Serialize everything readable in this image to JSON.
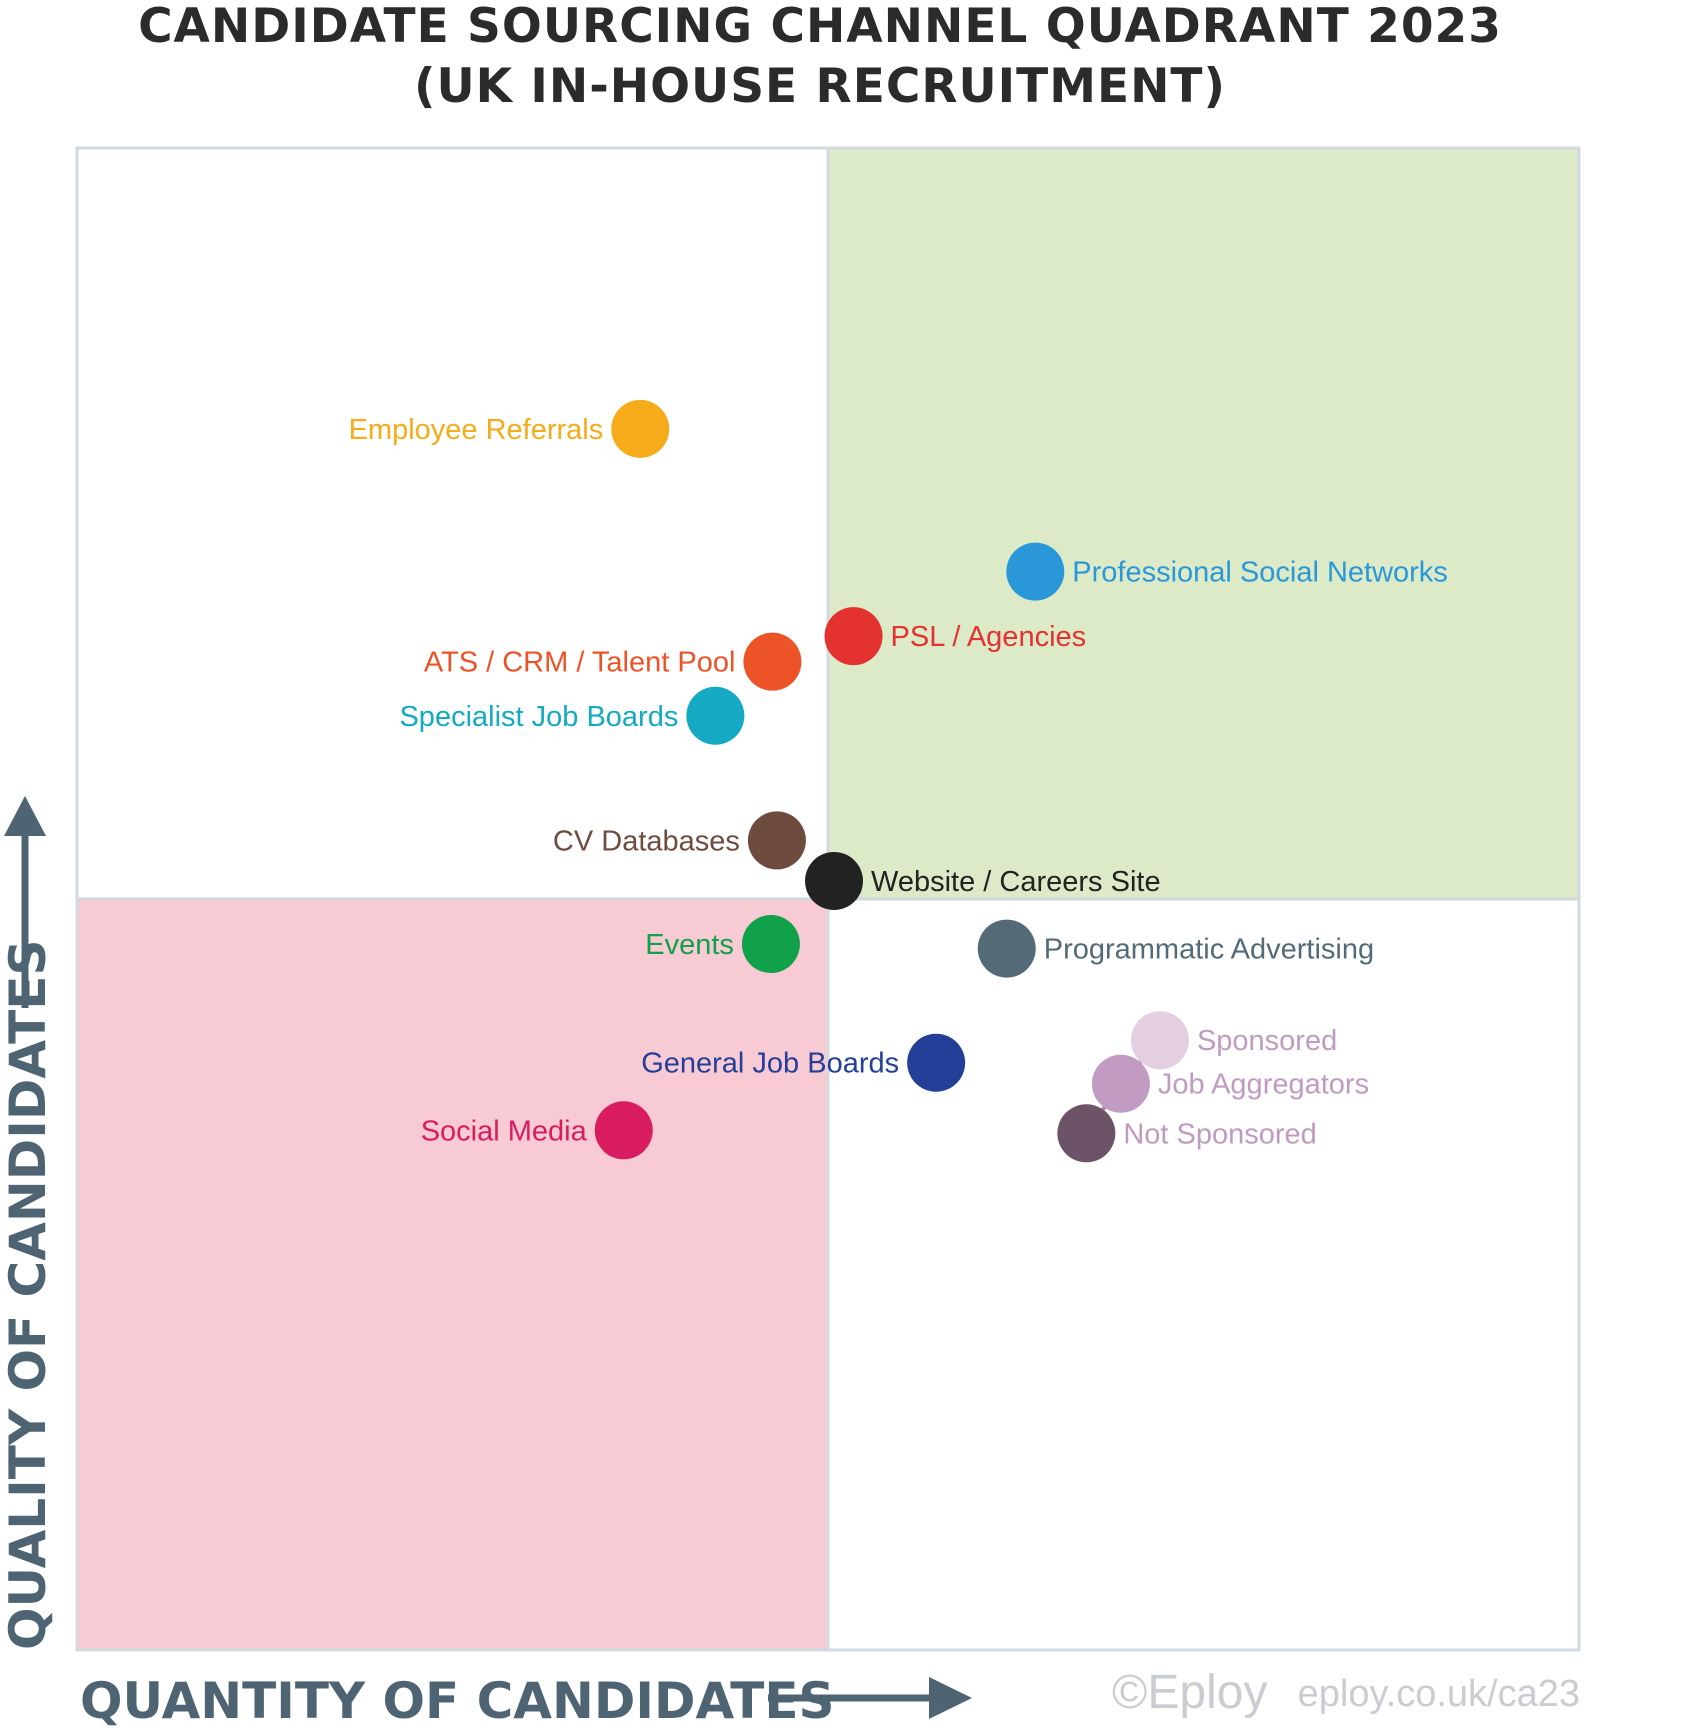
{
  "chart_data": {
    "type": "scatter",
    "title": "CANDIDATE SOURCING CHANNEL QUADRANT 2023",
    "subtitle": "(UK IN-HOUSE RECRUITMENT)",
    "xlabel": "QUANTITY OF CANDIDATES",
    "ylabel": "QUALITY OF CANDIDATES",
    "xlim": [
      0,
      100
    ],
    "ylim": [
      0,
      100
    ],
    "grid": false,
    "legend": "none",
    "quadrants": [
      {
        "name": "high-quantity-high-quality",
        "fill": "#dceac8"
      },
      {
        "name": "low-quantity-low-quality",
        "fill": "#f8cad3"
      },
      {
        "name": "low-quantity-high-quality",
        "fill": "#ffffff"
      },
      {
        "name": "high-quantity-low-quality",
        "fill": "#ffffff"
      }
    ],
    "points": [
      {
        "label": "Employee Referrals",
        "x": 37.5,
        "y": 81.3,
        "color": "#f6ab1a",
        "label_side": "left"
      },
      {
        "label": "Professional Social Networks",
        "x": 63.8,
        "y": 71.8,
        "color": "#2a98d8",
        "label_side": "right"
      },
      {
        "label": "PSL / Agencies",
        "x": 51.7,
        "y": 67.5,
        "color": "#e3322f",
        "label_side": "right"
      },
      {
        "label": "ATS / CRM / Talent Pool",
        "x": 46.3,
        "y": 65.8,
        "color": "#ec5427",
        "label_side": "left"
      },
      {
        "label": "Specialist Job Boards",
        "x": 42.5,
        "y": 62.2,
        "color": "#15a9c4",
        "label_side": "left"
      },
      {
        "label": "CV Databases",
        "x": 46.6,
        "y": 53.9,
        "color": "#6d4c3f",
        "label_side": "left"
      },
      {
        "label": "Website / Careers Site",
        "x": 50.4,
        "y": 51.2,
        "color": "#222222",
        "label_side": "right"
      },
      {
        "label": "Events",
        "x": 46.2,
        "y": 47.0,
        "color": "#10a14a",
        "label_side": "left"
      },
      {
        "label": "Programmatic Advertising",
        "x": 61.9,
        "y": 46.7,
        "color": "#556a77",
        "label_side": "right"
      },
      {
        "label": "General Job Boards",
        "x": 57.2,
        "y": 39.1,
        "color": "#233f97",
        "label_side": "left"
      },
      {
        "label": "Social Media",
        "x": 36.4,
        "y": 34.6,
        "color": "#d91b5f",
        "label_side": "left"
      },
      {
        "label": "Sponsored",
        "x": 72.1,
        "y": 40.6,
        "color": "#e3cfe0",
        "label_color": "#c09bc0",
        "label_side": "right"
      },
      {
        "label": "Job Aggregators",
        "x": 69.5,
        "y": 37.7,
        "color": "#c29bc2",
        "label_color": "#c09bc0",
        "label_side": "right"
      },
      {
        "label": "Not Sponsored",
        "x": 67.2,
        "y": 34.4,
        "color": "#6d5368",
        "label_color": "#c09bc0",
        "label_side": "right"
      }
    ],
    "connector": [
      "Sponsored",
      "Job Aggregators",
      "Not Sponsored"
    ]
  },
  "footer": {
    "copyright": "©Eploy",
    "url": "eploy.co.uk/ca23"
  },
  "colors": {
    "axis": "#4f6473",
    "border": "#d3dadf"
  }
}
